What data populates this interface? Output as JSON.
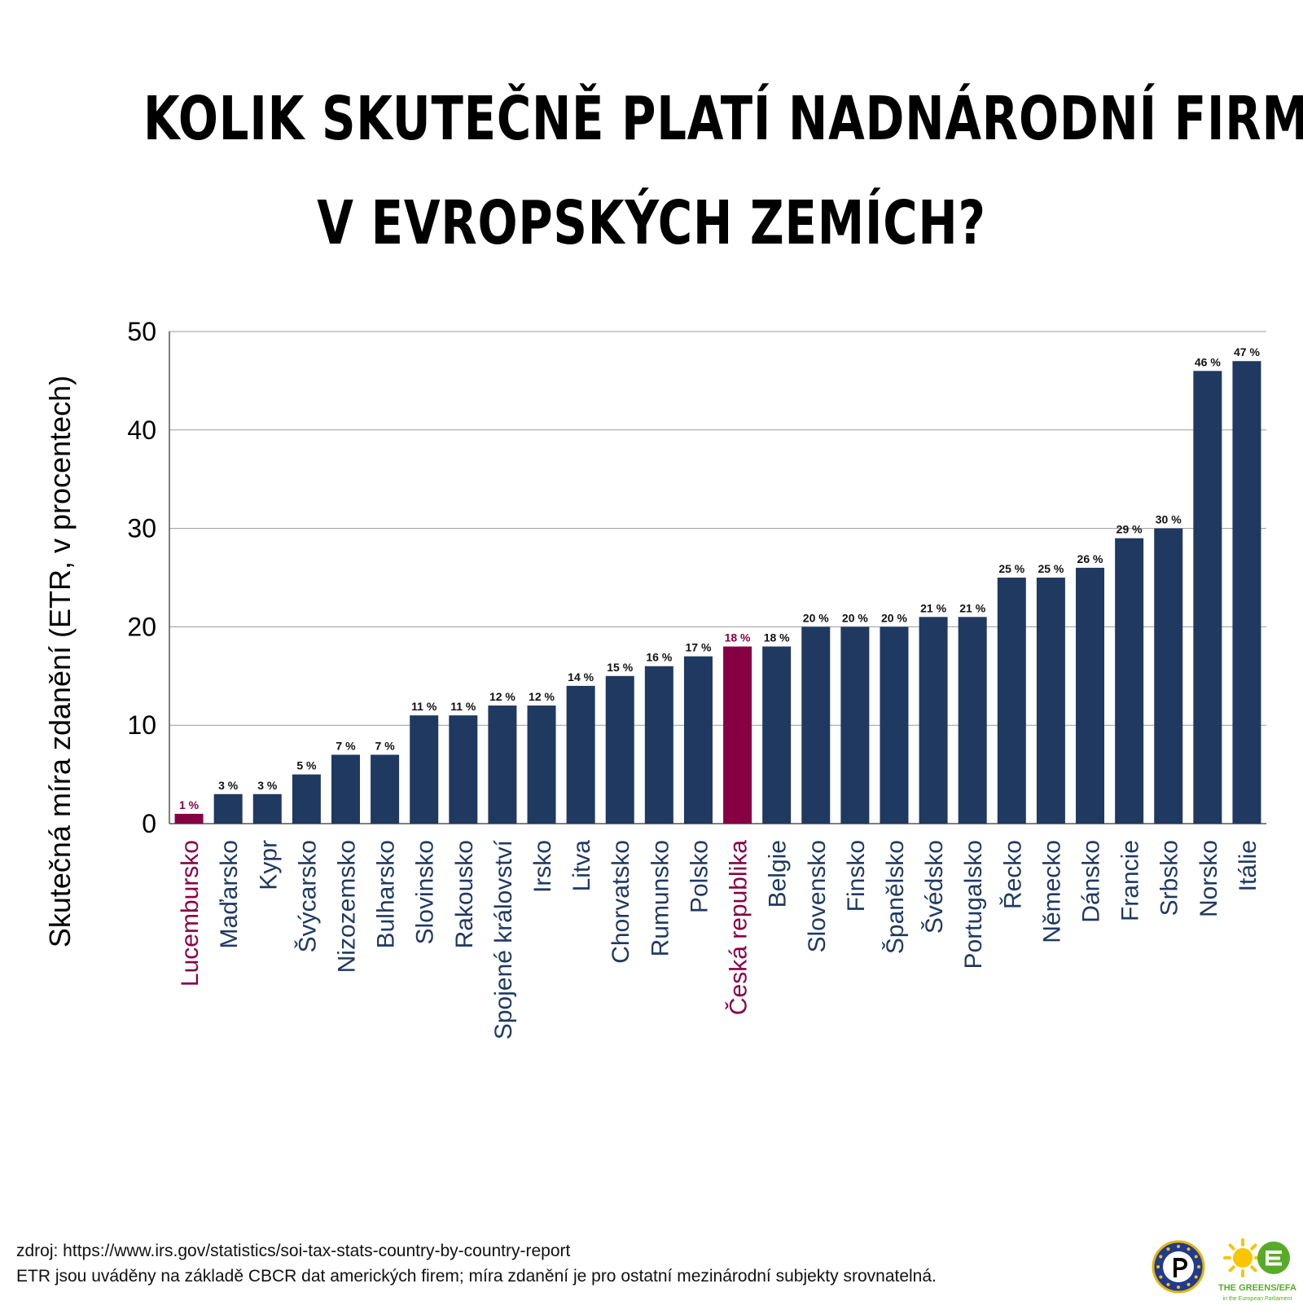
{
  "title": {
    "line1": "KOLIK SKUTEČNĚ PLATÍ NADNÁRODNÍ FIRMY",
    "line2": "V EVROPSKÝCH ZEMÍCH?"
  },
  "chart_data": {
    "type": "bar",
    "ylabel": "Skutečná míra zdanění (ETR, v procentech)",
    "xlabel": "",
    "ylim": [
      0,
      50
    ],
    "yticks": [
      0,
      10,
      20,
      30,
      40,
      50
    ],
    "grid": true,
    "categories": [
      "Lucembursko",
      "Maďarsko",
      "Kypr",
      "Švýcarsko",
      "Nizozemsko",
      "Bulharsko",
      "Slovinsko",
      "Rakousko",
      "Spojené království",
      "Irsko",
      "Litva",
      "Chorvatsko",
      "Rumunsko",
      "Polsko",
      "Česká republika",
      "Belgie",
      "Slovensko",
      "Finsko",
      "Španělsko",
      "Švédsko",
      "Portugalsko",
      "Řecko",
      "Německo",
      "Dánsko",
      "Francie",
      "Srbsko",
      "Norsko",
      "Itálie"
    ],
    "values": [
      1,
      3,
      3,
      5,
      7,
      7,
      11,
      11,
      12,
      12,
      14,
      15,
      16,
      17,
      18,
      18,
      20,
      20,
      20,
      21,
      21,
      25,
      25,
      26,
      29,
      30,
      46,
      47
    ],
    "value_labels": [
      "1 %",
      "3 %",
      "3 %",
      "5 %",
      "7 %",
      "7 %",
      "11 %",
      "11 %",
      "12 %",
      "12 %",
      "14 %",
      "15 %",
      "16 %",
      "17 %",
      "18 %",
      "18 %",
      "20 %",
      "20 %",
      "20 %",
      "21 %",
      "21 %",
      "25 %",
      "25 %",
      "26 %",
      "29 %",
      "30 %",
      "46 %",
      "47 %"
    ],
    "highlighted": [
      "Lucembursko",
      "Česká republika"
    ],
    "colors": {
      "bar": "#1f3961",
      "highlight": "#880044",
      "grid": "#9a9a9a"
    }
  },
  "footer": {
    "source": "zdroj: https://www.irs.gov/statistics/soi-tax-stats-country-by-country-report",
    "note": "ETR jsou uváděny na základě CBCR dat amerických firem; míra zdanění je pro ostatní mezinárodní subjekty srovnatelná."
  },
  "logos": {
    "pirate": "pirate-party-logo-icon",
    "greens": "greens-efa-logo-icon",
    "greens_text": "THE GREENS/EFA",
    "greens_subtext": "in the European Parliament"
  }
}
